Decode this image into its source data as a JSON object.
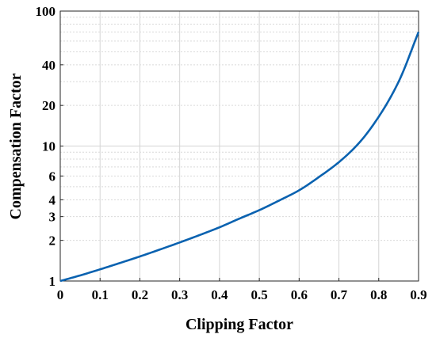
{
  "chart_data": {
    "type": "line",
    "title": "",
    "xlabel": "Clipping Factor",
    "ylabel": "Compensation Factor",
    "xlim": [
      0,
      0.9
    ],
    "ylim": [
      1,
      100
    ],
    "yscale": "log",
    "grid": true,
    "x_ticks": [
      "0",
      "0.1",
      "0.2",
      "0.3",
      "0.4",
      "0.5",
      "0.6",
      "0.7",
      "0.8",
      "0.9"
    ],
    "y_ticks": [
      "1",
      "2",
      "3",
      "4",
      "6",
      "10",
      "20",
      "40",
      "100"
    ],
    "line_color": "#0a62b0",
    "series": [
      {
        "x": [
          0,
          0.05,
          0.1,
          0.15,
          0.2,
          0.25,
          0.3,
          0.35,
          0.4,
          0.45,
          0.5,
          0.55,
          0.6,
          0.65,
          0.7,
          0.75,
          0.8,
          0.85,
          0.9
        ],
        "values": [
          1.0,
          1.1,
          1.22,
          1.36,
          1.52,
          1.71,
          1.93,
          2.19,
          2.5,
          2.9,
          3.35,
          3.95,
          4.7,
          5.9,
          7.6,
          10.5,
          16.5,
          30,
          70
        ]
      }
    ]
  }
}
